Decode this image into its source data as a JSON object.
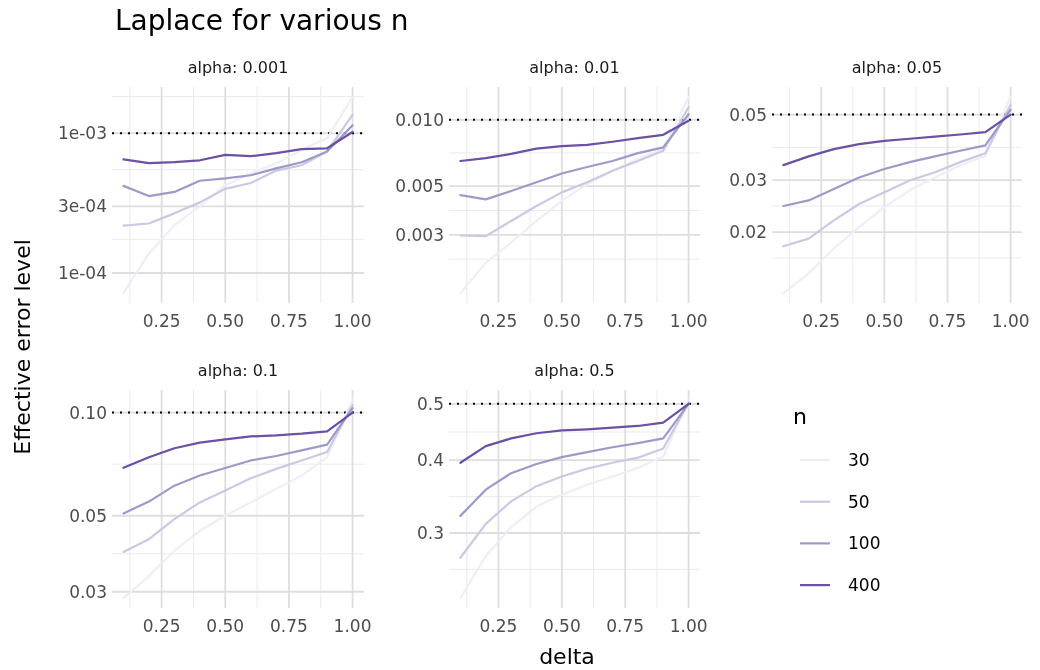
{
  "chart_data": [
    {
      "type": "line",
      "title": "Laplace for various n",
      "subtitle": "alpha: 0.001",
      "ylabel": "Effective error level",
      "legend": "right",
      "legend_title": "n",
      "x": [
        0.1,
        0.2,
        0.3,
        0.4,
        0.5,
        0.6,
        0.7,
        0.8,
        0.9,
        1.0
      ],
      "log": "y",
      "grid": true,
      "xlim": [
        0.055,
        1.045
      ],
      "xticks": [
        {
          "value": 0.25,
          "label": "0.25"
        },
        {
          "value": 0.5,
          "label": "0.50"
        },
        {
          "value": 0.75,
          "label": "0.75"
        },
        {
          "value": 1,
          "label": "1.00"
        }
      ],
      "ylim": [
        6.1e-05,
        0.00214
      ],
      "yticks": [
        {
          "value": 0.0001,
          "label": "1e-04"
        },
        {
          "value": 0.0003,
          "label": "3e-04"
        },
        {
          "value": 0.001,
          "label": "1e-03"
        }
      ],
      "ref_lines": [
        {
          "axis": "y",
          "value": 0.001,
          "color": "#000000",
          "line_style": "dotted"
        }
      ],
      "series": [
        {
          "name": "30",
          "color": "#efedf5",
          "values": [
            7.2e-05,
            0.000138,
            0.00022,
            0.0003,
            0.000425,
            0.000515,
            0.00061,
            0.00076,
            0.00092,
            0.00182
          ]
        },
        {
          "name": "50",
          "color": "#cbc9e2",
          "values": [
            0.000218,
            0.000226,
            0.000267,
            0.00032,
            0.0004,
            0.00044,
            0.00054,
            0.00059,
            0.00074,
            0.00135
          ]
        },
        {
          "name": "100",
          "color": "#9e9ac8",
          "values": [
            0.00042,
            0.000355,
            0.00038,
            0.000457,
            0.000475,
            0.0005,
            0.00056,
            0.00062,
            0.00074,
            0.00114
          ]
        },
        {
          "name": "400",
          "color": "#6a51a3",
          "values": [
            0.00065,
            0.00061,
            0.00062,
            0.00064,
            0.0007,
            0.000685,
            0.00072,
            0.00077,
            0.00078,
            0.00102
          ]
        }
      ]
    },
    {
      "type": "line",
      "subtitle": "alpha: 0.01",
      "x": [
        0.1,
        0.2,
        0.3,
        0.4,
        0.5,
        0.6,
        0.7,
        0.8,
        0.9,
        1.0
      ],
      "log": "y",
      "grid": true,
      "xlim": [
        0.055,
        1.045
      ],
      "xticks": [
        {
          "value": 0.25,
          "label": "0.25"
        },
        {
          "value": 0.5,
          "label": "0.50"
        },
        {
          "value": 0.75,
          "label": "0.75"
        },
        {
          "value": 1,
          "label": "1.00"
        }
      ],
      "ylim": [
        0.00147,
        0.0141
      ],
      "yticks": [
        {
          "value": 0.003,
          "label": "0.003"
        },
        {
          "value": 0.005,
          "label": "0.005"
        },
        {
          "value": 0.01,
          "label": "0.010"
        }
      ],
      "ref_lines": [
        {
          "axis": "y",
          "value": 0.01,
          "color": "#000000",
          "line_style": "dotted"
        }
      ],
      "series": [
        {
          "color": "#efedf5",
          "values": [
            0.00163,
            0.00224,
            0.00277,
            0.00347,
            0.00428,
            0.0051,
            0.00587,
            0.00664,
            0.00737,
            0.0127
          ]
        },
        {
          "color": "#cbc9e2",
          "values": [
            0.00298,
            0.00296,
            0.00347,
            0.00406,
            0.00468,
            0.0052,
            0.00587,
            0.0065,
            0.00724,
            0.0114
          ]
        },
        {
          "color": "#9e9ac8",
          "values": [
            0.00455,
            0.00435,
            0.00475,
            0.0052,
            0.0057,
            0.0061,
            0.0065,
            0.00706,
            0.0075,
            0.0106
          ]
        },
        {
          "color": "#6a51a3",
          "values": [
            0.0065,
            0.0067,
            0.007,
            0.0074,
            0.0076,
            0.0077,
            0.00795,
            0.00825,
            0.00855,
            0.0099
          ]
        }
      ]
    },
    {
      "type": "line",
      "subtitle": "alpha: 0.05",
      "x": [
        0.1,
        0.2,
        0.3,
        0.4,
        0.5,
        0.6,
        0.7,
        0.8,
        0.9,
        1.0
      ],
      "log": "y",
      "grid": true,
      "xlim": [
        0.055,
        1.045
      ],
      "xticks": [
        {
          "value": 0.25,
          "label": "0.25"
        },
        {
          "value": 0.5,
          "label": "0.50"
        },
        {
          "value": 0.75,
          "label": "0.75"
        },
        {
          "value": 1,
          "label": "1.00"
        }
      ],
      "ylim": [
        0.0115,
        0.062
      ],
      "yticks": [
        0.02,
        0.03,
        0.05
      ],
      "ref_lines": [
        {
          "axis": "y",
          "value": 0.05,
          "color": "#000000",
          "line_style": "dotted"
        }
      ],
      "series": [
        {
          "color": "#efedf5",
          "values": [
            0.0124,
            0.0145,
            0.0176,
            0.0208,
            0.0243,
            0.0277,
            0.0306,
            0.0336,
            0.0362,
            0.0576
          ]
        },
        {
          "color": "#cbc9e2",
          "values": [
            0.0179,
            0.019,
            0.0219,
            0.0249,
            0.0273,
            0.0299,
            0.0319,
            0.0345,
            0.037,
            0.054
          ]
        },
        {
          "color": "#9e9ac8",
          "values": [
            0.0245,
            0.0256,
            0.028,
            0.0306,
            0.0327,
            0.0345,
            0.0361,
            0.0377,
            0.0393,
            0.052
          ]
        },
        {
          "color": "#6a51a3",
          "values": [
            0.0337,
            0.0361,
            0.0382,
            0.0397,
            0.0407,
            0.0414,
            0.0421,
            0.0428,
            0.0436,
            0.05
          ]
        }
      ]
    },
    {
      "type": "line",
      "subtitle": "alpha: 0.1",
      "x": [
        0.1,
        0.2,
        0.3,
        0.4,
        0.5,
        0.6,
        0.7,
        0.8,
        0.9,
        1.0
      ],
      "log": "y",
      "grid": true,
      "xlim": [
        0.055,
        1.045
      ],
      "xticks": [
        {
          "value": 0.25,
          "label": "0.25"
        },
        {
          "value": 0.5,
          "label": "0.50"
        },
        {
          "value": 0.75,
          "label": "0.75"
        },
        {
          "value": 1,
          "label": "1.00"
        }
      ],
      "ylim": [
        0.0269,
        0.1164
      ],
      "yticks": [
        0.03,
        0.05,
        {
          "value": 0.1,
          "label": "0.10"
        }
      ],
      "ref_lines": [
        {
          "axis": "y",
          "value": 0.1,
          "color": "#000000",
          "line_style": "dotted"
        }
      ],
      "series": [
        {
          "color": "#efedf5",
          "values": [
            0.0288,
            0.0333,
            0.0395,
            0.0452,
            0.05,
            0.0547,
            0.0599,
            0.0655,
            0.0741,
            0.109
          ]
        },
        {
          "color": "#cbc9e2",
          "values": [
            0.0392,
            0.0427,
            0.0489,
            0.0547,
            0.0592,
            0.0643,
            0.0685,
            0.0725,
            0.0767,
            0.105
          ]
        },
        {
          "color": "#9e9ac8",
          "values": [
            0.0508,
            0.055,
            0.0612,
            0.0655,
            0.0689,
            0.0725,
            0.0747,
            0.0776,
            0.0806,
            0.103
          ]
        },
        {
          "color": "#6a51a3",
          "values": [
            0.069,
            0.0741,
            0.0787,
            0.0817,
            0.0835,
            0.0852,
            0.0858,
            0.0868,
            0.0882,
            0.1
          ]
        }
      ]
    },
    {
      "type": "line",
      "subtitle": "alpha: 0.5",
      "xlabel": "delta",
      "x": [
        0.1,
        0.2,
        0.3,
        0.4,
        0.5,
        0.6,
        0.7,
        0.8,
        0.9,
        1.0
      ],
      "log": "y",
      "grid": true,
      "xlim": [
        0.055,
        1.045
      ],
      "xticks": [
        {
          "value": 0.25,
          "label": "0.25"
        },
        {
          "value": 0.5,
          "label": "0.50"
        },
        {
          "value": 0.75,
          "label": "0.75"
        },
        {
          "value": 1,
          "label": "1.00"
        }
      ],
      "ylim": [
        0.223,
        0.528
      ],
      "yticks": [
        0.3,
        0.4,
        0.5
      ],
      "ref_lines": [
        {
          "axis": "y",
          "value": 0.5,
          "color": "#000000",
          "line_style": "dotted"
        }
      ],
      "series": [
        {
          "color": "#efedf5",
          "values": [
            0.232,
            0.274,
            0.307,
            0.333,
            0.349,
            0.363,
            0.375,
            0.388,
            0.406,
            0.507
          ]
        },
        {
          "color": "#cbc9e2",
          "values": [
            0.272,
            0.311,
            0.34,
            0.361,
            0.375,
            0.387,
            0.396,
            0.404,
            0.419,
            0.502
          ]
        },
        {
          "color": "#9e9ac8",
          "values": [
            0.321,
            0.356,
            0.38,
            0.394,
            0.405,
            0.413,
            0.421,
            0.428,
            0.436,
            0.5
          ]
        },
        {
          "color": "#6a51a3",
          "values": [
            0.396,
            0.423,
            0.436,
            0.445,
            0.45,
            0.452,
            0.455,
            0.458,
            0.464,
            0.5
          ]
        }
      ]
    }
  ]
}
